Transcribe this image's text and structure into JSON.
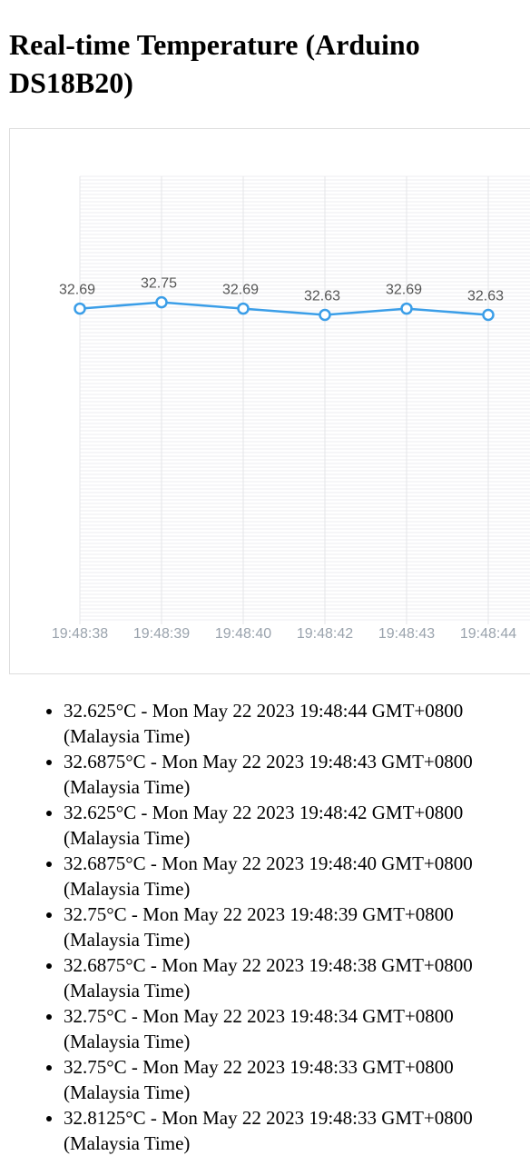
{
  "page": {
    "title": "Real-time Temperature (Arduino DS18B20)"
  },
  "chart_data": {
    "type": "line",
    "title": "",
    "xlabel": "",
    "ylabel": "",
    "grid": true,
    "legend": "none",
    "color": "#3b9ee8",
    "x": [
      "19:48:38",
      "19:48:39",
      "19:48:40",
      "19:48:42",
      "19:48:43",
      "19:48:44"
    ],
    "data_labels": [
      "32.69",
      "32.75",
      "32.69",
      "32.63",
      "32.69",
      "32.63"
    ],
    "series": [
      {
        "values": [
          32.6875,
          32.75,
          32.6875,
          32.625,
          32.6875,
          32.625
        ]
      }
    ],
    "ylim": [
      29.6,
      34.0
    ]
  },
  "readings": [
    "32.625°C - Mon May 22 2023 19:48:44 GMT+0800 (Malaysia Time)",
    "32.6875°C - Mon May 22 2023 19:48:43 GMT+0800 (Malaysia Time)",
    "32.625°C - Mon May 22 2023 19:48:42 GMT+0800 (Malaysia Time)",
    "32.6875°C - Mon May 22 2023 19:48:40 GMT+0800 (Malaysia Time)",
    "32.75°C - Mon May 22 2023 19:48:39 GMT+0800 (Malaysia Time)",
    "32.6875°C - Mon May 22 2023 19:48:38 GMT+0800 (Malaysia Time)",
    "32.75°C - Mon May 22 2023 19:48:34 GMT+0800 (Malaysia Time)",
    "32.75°C - Mon May 22 2023 19:48:33 GMT+0800 (Malaysia Time)",
    "32.8125°C - Mon May 22 2023 19:48:33 GMT+0800 (Malaysia Time)"
  ]
}
